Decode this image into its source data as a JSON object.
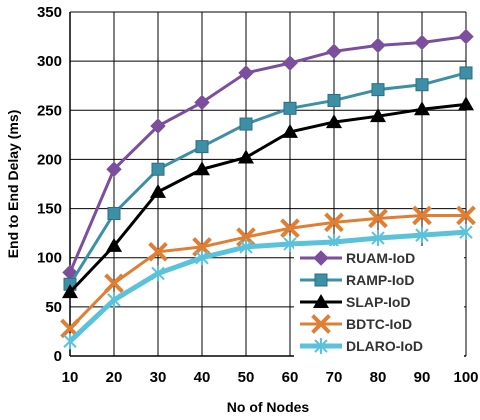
{
  "chart_data": {
    "type": "line",
    "title": "",
    "xlabel": "No of Nodes",
    "ylabel": "End to End Delay (ms)",
    "x": [
      10,
      20,
      30,
      40,
      50,
      60,
      70,
      80,
      90,
      100
    ],
    "xlim": [
      10,
      100
    ],
    "ylim": [
      0,
      350
    ],
    "yticks": [
      0,
      50,
      100,
      150,
      200,
      250,
      300,
      350
    ],
    "grid": true,
    "legend_position": "bottom-right",
    "series": [
      {
        "name": "RUAM-IoD",
        "color": "#7b4e9e",
        "marker": "diamond",
        "values": [
          85,
          190,
          234,
          258,
          288,
          298,
          310,
          316,
          319,
          325
        ]
      },
      {
        "name": "RAMP-IoD",
        "color": "#3d8fa6",
        "marker": "square",
        "values": [
          73,
          145,
          190,
          213,
          236,
          252,
          260,
          271,
          276,
          288
        ]
      },
      {
        "name": "SLAP-IoD",
        "color": "#000000",
        "marker": "triangle",
        "values": [
          65,
          112,
          167,
          190,
          202,
          228,
          238,
          244,
          251,
          256
        ]
      },
      {
        "name": "BDTC-IoD",
        "color": "#e07f33",
        "marker": "x",
        "values": [
          28,
          74,
          106,
          111,
          121,
          130,
          136,
          140,
          143,
          143
        ]
      },
      {
        "name": "DLARO-IoD",
        "color": "#5bc2dc",
        "marker": "star",
        "values": [
          15,
          57,
          84,
          100,
          111,
          114,
          116,
          120,
          123,
          126
        ]
      }
    ]
  }
}
